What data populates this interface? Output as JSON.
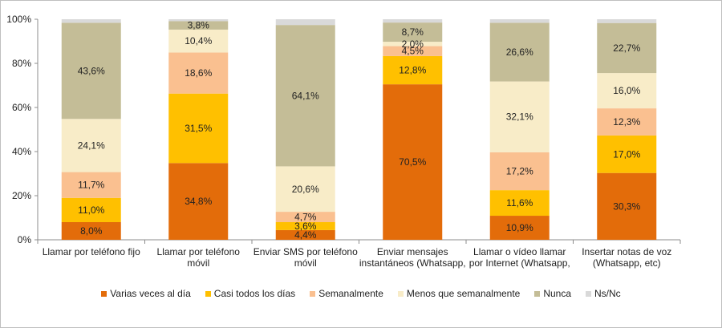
{
  "chart_data": {
    "type": "bar",
    "stacked": true,
    "categories": [
      "Llamar por teléfono fijo",
      "Llamar por teléfono móvil",
      "Enviar SMS por teléfono móvil",
      "Enviar mensajes instantáneos (Whatsapp,",
      "Llamar o vídeo llamar por Internet (Whatsapp,",
      "Insertar notas de voz (Whatsapp, etc)"
    ],
    "category_lines": [
      [
        "Llamar por teléfono fijo"
      ],
      [
        "Llamar por teléfono",
        "móvil"
      ],
      [
        "Enviar SMS por teléfono",
        "móvil"
      ],
      [
        "Enviar mensajes",
        "instantáneos (Whatsapp,"
      ],
      [
        "Llamar o vídeo llamar",
        "por Internet (Whatsapp,"
      ],
      [
        "Insertar notas de voz",
        "(Whatsapp, etc)"
      ]
    ],
    "series": [
      {
        "name": "Varias veces al día",
        "color": "#e36c0a",
        "values": [
          8.0,
          34.8,
          4.4,
          70.5,
          10.9,
          30.3
        ],
        "labels": [
          "8,0%",
          "34,8%",
          "4,4%",
          "70,5%",
          "10,9%",
          "30,3%"
        ]
      },
      {
        "name": "Casi todos los días",
        "color": "#ffc000",
        "values": [
          11.0,
          31.5,
          3.6,
          12.8,
          11.6,
          17.0
        ],
        "labels": [
          "11,0%",
          "31,5%",
          "3,6%",
          "12,8%",
          "11,6%",
          "17,0%"
        ]
      },
      {
        "name": "Semanalmente",
        "color": "#fac090",
        "values": [
          11.7,
          18.6,
          4.7,
          4.5,
          17.2,
          12.3
        ],
        "labels": [
          "11,7%",
          "18,6%",
          "4,7%",
          "4,5%",
          "17,2%",
          "12,3%"
        ]
      },
      {
        "name": "Menos que semanalmente",
        "color": "#f8ecc8",
        "values": [
          24.1,
          10.4,
          20.6,
          2.0,
          32.1,
          16.0
        ],
        "labels": [
          "24,1%",
          "10,4%",
          "20,6%",
          "2,0%",
          "32,1%",
          "16,0%"
        ]
      },
      {
        "name": "Nunca",
        "color": "#c4bd97",
        "values": [
          43.6,
          3.8,
          64.1,
          8.7,
          26.6,
          22.7
        ],
        "labels": [
          "43,6%",
          "3,8%",
          "64,1%",
          "8,7%",
          "26,6%",
          "22,7%"
        ]
      },
      {
        "name": "Ns/Nc",
        "color": "#d9d9d9",
        "values": [
          1.6,
          0.9,
          2.6,
          1.5,
          1.6,
          1.7
        ],
        "labels": [
          "",
          "",
          "",
          "",
          "",
          ""
        ]
      }
    ],
    "y_ticks": [
      "0%",
      "20%",
      "40%",
      "60%",
      "80%",
      "100%"
    ],
    "ylim": [
      0,
      100
    ],
    "grid": false,
    "legend_position": "bottom"
  }
}
